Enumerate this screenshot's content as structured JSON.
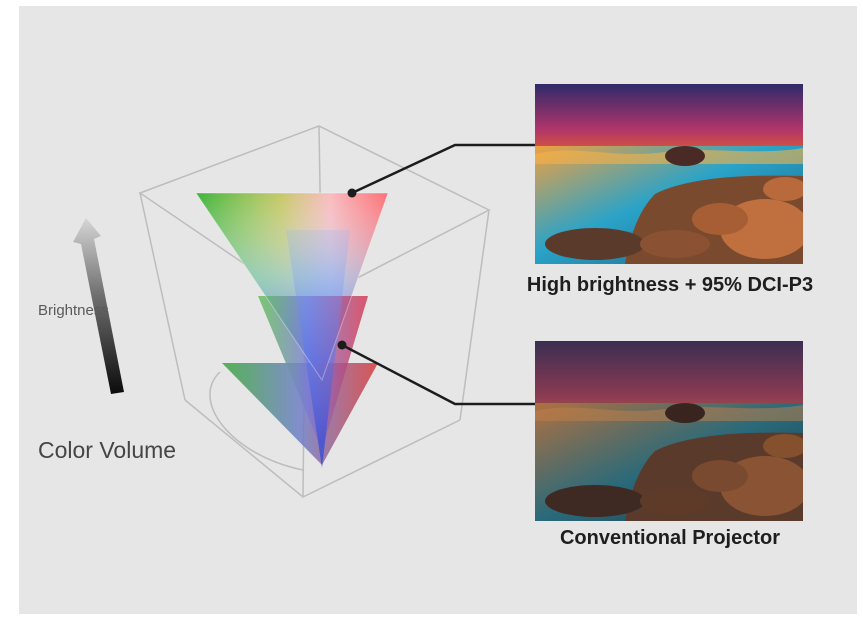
{
  "diagram": {
    "axis_label": "Brightness",
    "title": "Color Volume"
  },
  "comparison": {
    "top": {
      "caption": "High brightness + 95% DCI-P3"
    },
    "bottom": {
      "caption": "Conventional Projector"
    }
  },
  "colors": {
    "background": "#e6e6e6",
    "leader_line": "#1c1c1c",
    "cube_edges": "#bdbdbd"
  }
}
